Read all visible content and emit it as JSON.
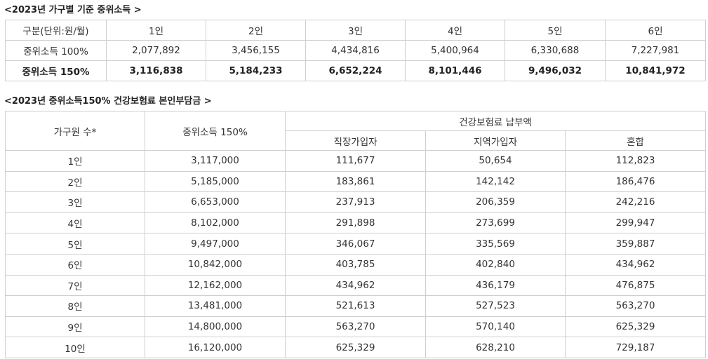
{
  "table1": {
    "caption": "<2023년 가구별 기준 중위소득 >",
    "headers": [
      "구분(단위:원/월)",
      "1인",
      "2인",
      "3인",
      "4인",
      "5인",
      "6인"
    ],
    "rows": [
      [
        "중위소득 100%",
        "2,077,892",
        "3,456,155",
        "4,434,816",
        "5,400,964",
        "6,330,688",
        "7,227,981"
      ],
      [
        "중위소득 150%",
        "3,116,838",
        "5,184,233",
        "6,652,224",
        "8,101,446",
        "9,496,032",
        "10,841,972"
      ]
    ]
  },
  "table2": {
    "caption": "<2023년 중위소득150% 건강보험료 본인부담금 >",
    "header_household": "가구원 수*",
    "header_median": "중위소득 150%",
    "header_premium_group": "건강보험료 납부액",
    "header_sub": [
      "직장가입자",
      "지역가입자",
      "혼합"
    ],
    "rows": [
      [
        "1인",
        "3,117,000",
        "111,677",
        "50,654",
        "112,823"
      ],
      [
        "2인",
        "5,185,000",
        "183,861",
        "142,142",
        "186,476"
      ],
      [
        "3인",
        "6,653,000",
        "237,913",
        "206,359",
        "242,216"
      ],
      [
        "4인",
        "8,102,000",
        "291,898",
        "273,699",
        "299,947"
      ],
      [
        "5인",
        "9,497,000",
        "346,067",
        "335,569",
        "359,887"
      ],
      [
        "6인",
        "10,842,000",
        "403,785",
        "402,840",
        "434,962"
      ],
      [
        "7인",
        "12,162,000",
        "434,962",
        "436,179",
        "476,875"
      ],
      [
        "8인",
        "13,481,000",
        "521,613",
        "527,523",
        "563,270"
      ],
      [
        "9인",
        "14,800,000",
        "563,270",
        "570,140",
        "625,329"
      ],
      [
        "10인",
        "16,120,000",
        "625,329",
        "628,210",
        "729,187"
      ]
    ]
  }
}
